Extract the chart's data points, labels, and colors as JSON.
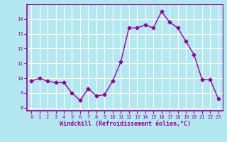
{
  "x": [
    0,
    1,
    2,
    3,
    4,
    5,
    6,
    7,
    8,
    9,
    10,
    11,
    12,
    13,
    14,
    15,
    16,
    17,
    18,
    19,
    20,
    21,
    22,
    23
  ],
  "y": [
    9.8,
    10.0,
    9.8,
    9.7,
    9.7,
    9.0,
    8.5,
    9.3,
    8.8,
    8.9,
    9.8,
    11.1,
    13.4,
    13.4,
    13.6,
    13.4,
    14.5,
    13.8,
    13.4,
    12.5,
    11.6,
    9.9,
    9.9,
    8.6
  ],
  "line_color": "#990099",
  "marker": "D",
  "marker_size": 2.5,
  "bg_color": "#b3e8f0",
  "grid_color": "#ffffff",
  "xlabel": "Windchill (Refroidissement éolien,°C)",
  "xlabel_color": "#990099",
  "tick_color": "#990099",
  "axis_color": "#990099",
  "ylim": [
    7.8,
    15.0
  ],
  "yticks": [
    8,
    9,
    10,
    11,
    12,
    13,
    14
  ],
  "xlim": [
    -0.5,
    23.5
  ],
  "xticks": [
    0,
    1,
    2,
    3,
    4,
    5,
    6,
    7,
    8,
    9,
    10,
    11,
    12,
    13,
    14,
    15,
    16,
    17,
    18,
    19,
    20,
    21,
    22,
    23
  ]
}
